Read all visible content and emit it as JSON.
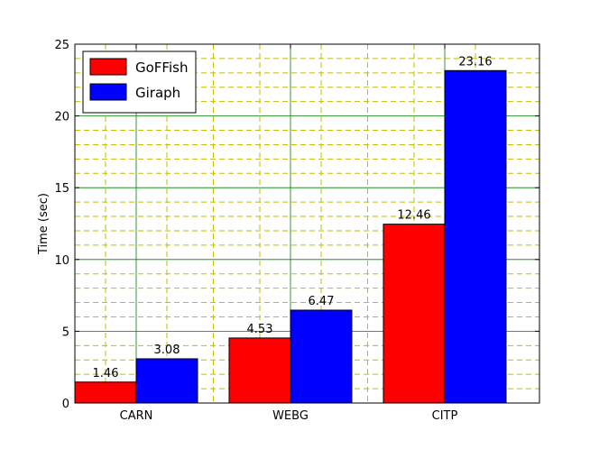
{
  "chart_data": {
    "type": "bar",
    "categories": [
      "CARN",
      "WEBG",
      "CITP"
    ],
    "series": [
      {
        "name": "GoFFish",
        "color": "#ff0000",
        "values": [
          1.46,
          4.53,
          12.46
        ],
        "labels": [
          "1.46",
          "4.53",
          "12.46"
        ]
      },
      {
        "name": "Giraph",
        "color": "#0000ff",
        "values": [
          3.08,
          6.47,
          23.16
        ],
        "labels": [
          "3.08",
          "6.47",
          "23.16"
        ]
      }
    ],
    "title": "",
    "xlabel": "",
    "ylabel": "Time (sec)",
    "ylim": [
      0,
      25
    ],
    "yticks": [
      "0",
      "5",
      "10",
      "15",
      "20",
      "25"
    ],
    "grid": {
      "major": true,
      "major_color": "#008000",
      "minor": true,
      "minor_color": "#bfbf00",
      "minor_style": "dashed"
    },
    "legend": {
      "position": "top-left"
    }
  }
}
